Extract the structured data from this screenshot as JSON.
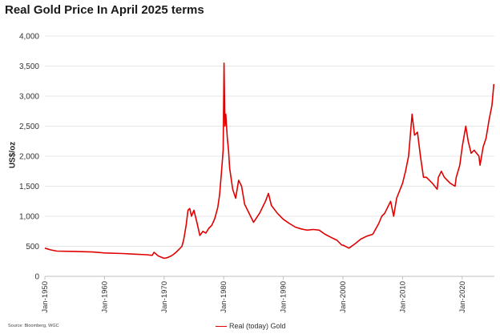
{
  "colors": {
    "series": "#e00000",
    "grid": "#dcdcdc",
    "text": "#333333"
  },
  "chart_data": {
    "type": "line",
    "title": "Real Gold Price In April 2025 terms",
    "ylabel": "US$/oz",
    "xlabel": "",
    "source": "Source: Bloomberg, WGC",
    "ylim": [
      0,
      4000
    ],
    "xlim": [
      1950,
      2025.4
    ],
    "grid": true,
    "legend_position": "bottom-center",
    "y_ticks": [
      "0",
      "500",
      "1,000",
      "1,500",
      "2,000",
      "2,500",
      "3,000",
      "3,500",
      "4,000"
    ],
    "x_ticks": [
      "Jan-1950",
      "Jan-1960",
      "Jan-1970",
      "Jan-1980",
      "Jan-1990",
      "Jan-2000",
      "Jan-2010",
      "Jan-2020"
    ],
    "series": [
      {
        "name": "Real (today) Gold",
        "color": "#e00000",
        "x": [
          1950,
          1951,
          1952,
          1955,
          1958,
          1960,
          1963,
          1965,
          1967,
          1968,
          1968.3,
          1969,
          1970,
          1970.5,
          1971,
          1971.5,
          1972,
          1972.5,
          1973,
          1973.3,
          1973.7,
          1974,
          1974.3,
          1974.6,
          1975,
          1975.5,
          1976,
          1976.5,
          1977,
          1977.5,
          1978,
          1978.5,
          1979,
          1979.3,
          1979.6,
          1979.9,
          1980.05,
          1980.2,
          1980.35,
          1980.6,
          1980.8,
          1981,
          1981.5,
          1982,
          1982.5,
          1983,
          1983.5,
          1984,
          1985,
          1986,
          1987,
          1987.5,
          1988,
          1989,
          1990,
          1991,
          1992,
          1993,
          1994,
          1995,
          1996,
          1997,
          1998,
          1999,
          1999.8,
          2000,
          2001,
          2002,
          2003,
          2004,
          2005,
          2006,
          2006.5,
          2007,
          2008,
          2008.5,
          2009,
          2010,
          2010.5,
          2011,
          2011.6,
          2012,
          2012.5,
          2013,
          2013.5,
          2014,
          2015,
          2015.8,
          2016,
          2016.5,
          2017,
          2018,
          2018.8,
          2019,
          2019.6,
          2020,
          2020.6,
          2021,
          2021.5,
          2022,
          2022.8,
          2023,
          2023.5,
          2024,
          2024.5,
          2025,
          2025.3
        ],
        "values": [
          470,
          440,
          420,
          415,
          405,
          390,
          380,
          370,
          360,
          350,
          400,
          340,
          300,
          310,
          330,
          360,
          400,
          450,
          500,
          620,
          850,
          1100,
          1130,
          1000,
          1100,
          900,
          680,
          750,
          720,
          800,
          850,
          960,
          1150,
          1350,
          1700,
          2100,
          3550,
          2500,
          2700,
          2300,
          2100,
          1800,
          1450,
          1300,
          1600,
          1500,
          1200,
          1100,
          900,
          1050,
          1250,
          1380,
          1180,
          1050,
          950,
          880,
          820,
          790,
          770,
          780,
          770,
          700,
          650,
          600,
          520,
          520,
          470,
          540,
          620,
          670,
          700,
          880,
          1000,
          1050,
          1250,
          1000,
          1300,
          1550,
          1750,
          2000,
          2700,
          2350,
          2400,
          2000,
          1650,
          1650,
          1550,
          1450,
          1650,
          1750,
          1650,
          1550,
          1500,
          1650,
          1850,
          2150,
          2500,
          2250,
          2050,
          2100,
          2000,
          1850,
          2150,
          2300,
          2600,
          2850,
          3200
        ]
      }
    ]
  }
}
